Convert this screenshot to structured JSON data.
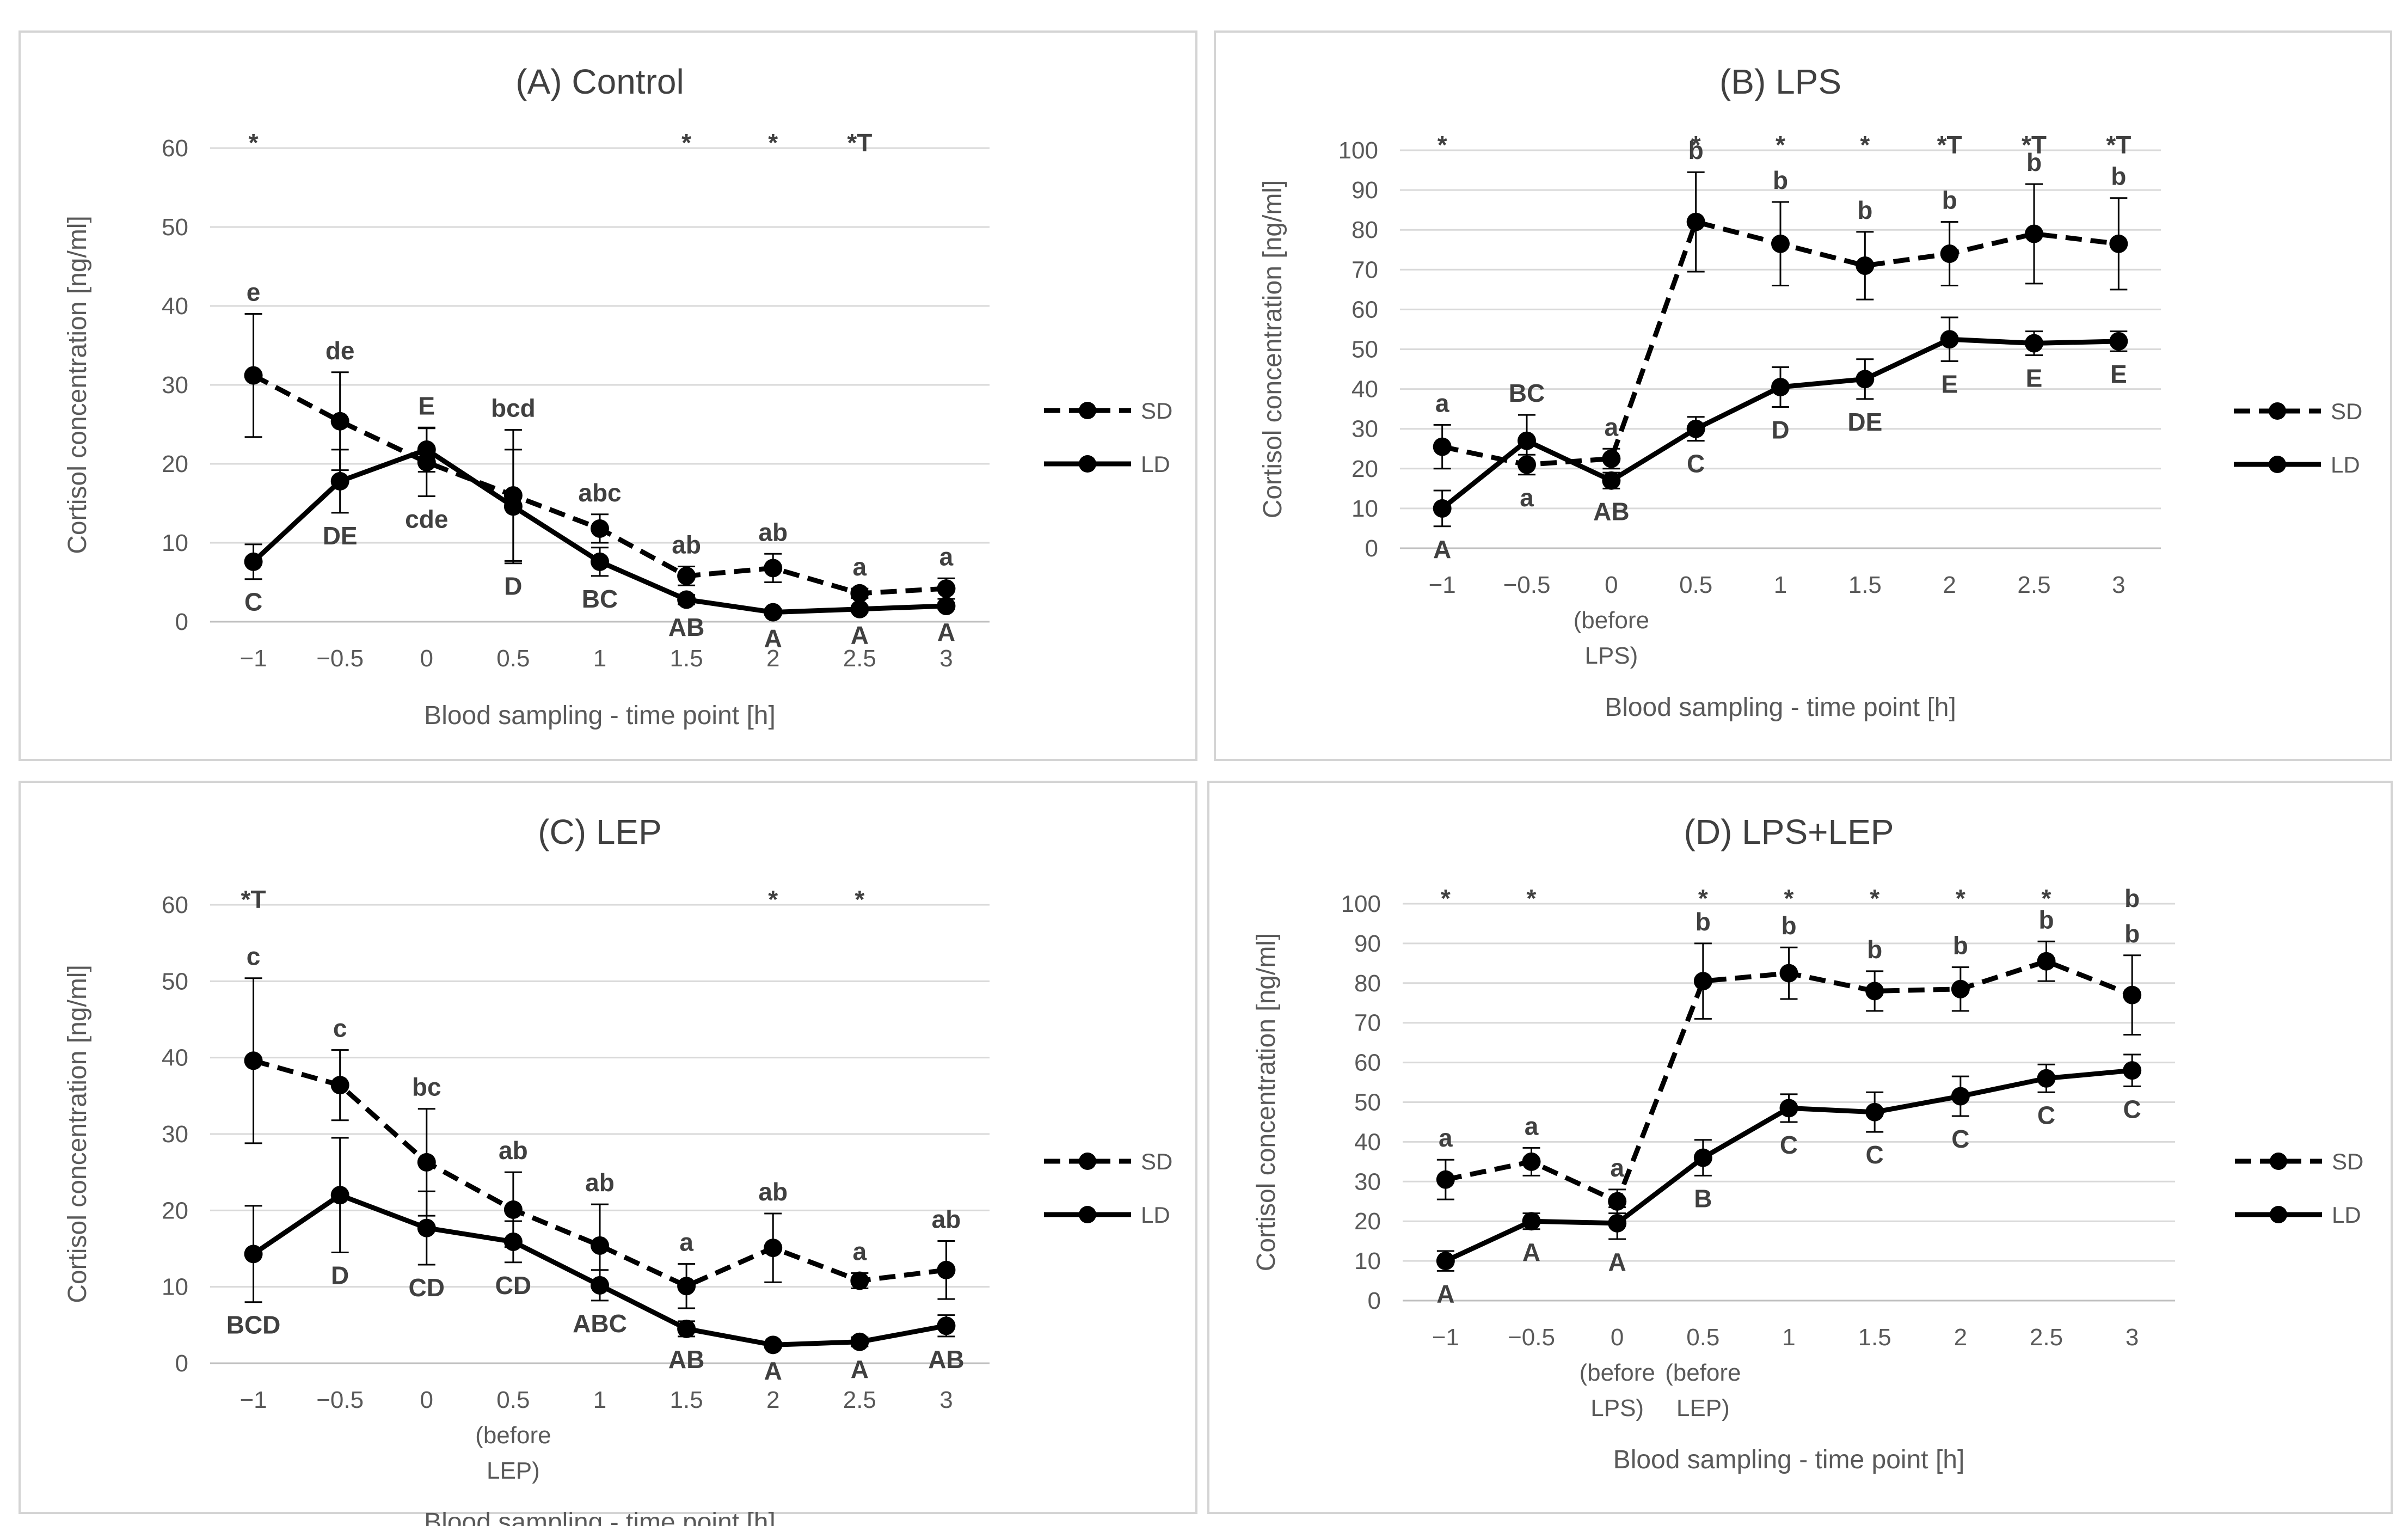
{
  "chart_data": [
    {
      "type": "line",
      "title": "(A) Control",
      "xlabel": "Blood sampling - time point [h]",
      "ylabel": "Cortisol concentration [ng/ml]",
      "ylim": [
        0,
        60
      ],
      "yticks": [
        0,
        10,
        20,
        30,
        40,
        50,
        60
      ],
      "categories": [
        "−1",
        "−0.5",
        "0",
        "0.5",
        "1",
        "1.5",
        "2",
        "2.5",
        "3"
      ],
      "category_notes": [],
      "series": [
        {
          "name": "SD",
          "style": "dashed",
          "values": [
            31.2,
            25.4,
            20.2,
            16.0,
            11.8,
            5.8,
            6.8,
            3.6,
            4.2
          ],
          "errors": [
            7.8,
            6.2,
            4.3,
            8.3,
            1.8,
            1.2,
            1.8,
            0.6,
            1.3
          ],
          "letters": [
            "e",
            "de",
            "cde",
            "bcd",
            "abc",
            "ab",
            "ab",
            "a",
            "a"
          ]
        },
        {
          "name": "LD",
          "style": "solid",
          "values": [
            7.6,
            17.8,
            21.8,
            14.6,
            7.6,
            2.8,
            1.2,
            1.6,
            2.0
          ],
          "errors": [
            2.2,
            4.0,
            2.8,
            7.2,
            1.8,
            0.6,
            0.4,
            0.4,
            0.4
          ],
          "letters": [
            "C",
            "DE",
            "E",
            "D",
            "BC",
            "AB",
            "A",
            "A",
            "A"
          ]
        }
      ],
      "significance": [
        "*",
        "",
        "",
        "",
        "",
        "*",
        "*",
        "*T",
        ""
      ],
      "legend": [
        "SD",
        "LD"
      ]
    },
    {
      "type": "line",
      "title": "(B) LPS",
      "xlabel": "Blood sampling - time point [h]",
      "ylabel": "Cortisol concentration [ng/ml]",
      "ylim": [
        0,
        100
      ],
      "yticks": [
        0,
        10,
        20,
        30,
        40,
        50,
        60,
        70,
        80,
        90,
        100
      ],
      "categories": [
        "−1",
        "−0.5",
        "0",
        "0.5",
        "1",
        "1.5",
        "2",
        "2.5",
        "3"
      ],
      "category_notes": [
        {
          "index": 2,
          "lines": [
            "(before",
            "LPS)"
          ]
        }
      ],
      "series": [
        {
          "name": "SD",
          "style": "dashed",
          "values": [
            25.5,
            21.0,
            22.5,
            82.0,
            76.5,
            71.0,
            74.0,
            79.0,
            76.5
          ],
          "errors": [
            5.5,
            2.5,
            2.5,
            12.5,
            10.5,
            8.5,
            8.0,
            12.5,
            11.5
          ],
          "letters": [
            "a",
            "a",
            "a",
            "b",
            "b",
            "b",
            "b",
            "b",
            "b"
          ]
        },
        {
          "name": "LD",
          "style": "solid",
          "values": [
            10.0,
            27.0,
            17.0,
            30.0,
            40.5,
            42.5,
            52.5,
            51.5,
            52.0
          ],
          "errors": [
            4.5,
            6.5,
            2.0,
            3.0,
            5.0,
            5.0,
            5.5,
            3.0,
            2.5
          ],
          "letters": [
            "A",
            "BC",
            "AB",
            "C",
            "D",
            "DE",
            "E",
            "E",
            "E"
          ]
        }
      ],
      "significance": [
        "*",
        "",
        "",
        "*",
        "*",
        "*",
        "*T",
        "*T",
        "*T"
      ],
      "legend": [
        "SD",
        "LD"
      ]
    },
    {
      "type": "line",
      "title": "(C) LEP",
      "xlabel": "Blood sampling - time point [h]",
      "ylabel": "Cortisol concentration [ng/ml]",
      "ylim": [
        0,
        60
      ],
      "yticks": [
        0,
        10,
        20,
        30,
        40,
        50,
        60
      ],
      "categories": [
        "−1",
        "−0.5",
        "0",
        "0.5",
        "1",
        "1.5",
        "2",
        "2.5",
        "3"
      ],
      "category_notes": [
        {
          "index": 3,
          "lines": [
            "(before",
            "LEP)"
          ]
        }
      ],
      "series": [
        {
          "name": "SD",
          "style": "dashed",
          "values": [
            39.6,
            36.4,
            26.3,
            20.1,
            15.4,
            10.1,
            15.1,
            10.8,
            12.2
          ],
          "errors": [
            10.8,
            4.6,
            7.0,
            4.9,
            5.4,
            2.9,
            4.5,
            1.0,
            3.8
          ],
          "letters": [
            "c",
            "c",
            "bc",
            "ab",
            "ab",
            "a",
            "ab",
            "a",
            "ab"
          ]
        },
        {
          "name": "LD",
          "style": "solid",
          "values": [
            14.3,
            22.0,
            17.7,
            15.9,
            10.2,
            4.5,
            2.4,
            2.8,
            4.9
          ],
          "errors": [
            6.3,
            7.5,
            4.8,
            2.7,
            2.0,
            1.0,
            0.4,
            0.6,
            1.4
          ],
          "letters": [
            "BCD",
            "D",
            "CD",
            "CD",
            "ABC",
            "AB",
            "A",
            "A",
            "AB"
          ]
        }
      ],
      "significance": [
        "*T",
        "",
        "",
        "",
        "",
        "",
        "*",
        "*",
        ""
      ],
      "legend": [
        "SD",
        "LD"
      ]
    },
    {
      "type": "line",
      "title": "(D) LPS+LEP",
      "xlabel": "Blood sampling - time point [h]",
      "ylabel": "Cortisol concentration [ng/ml]",
      "ylim": [
        0,
        100
      ],
      "yticks": [
        0,
        10,
        20,
        30,
        40,
        50,
        60,
        70,
        80,
        90,
        100
      ],
      "categories": [
        "−1",
        "−0.5",
        "0",
        "0.5",
        "1",
        "1.5",
        "2",
        "2.5",
        "3"
      ],
      "category_notes": [
        {
          "index": 2,
          "lines": [
            "(before",
            "LPS)"
          ]
        },
        {
          "index": 3,
          "lines": [
            "(before",
            "LEP)"
          ]
        }
      ],
      "series": [
        {
          "name": "SD",
          "style": "dashed",
          "values": [
            30.5,
            35.0,
            25.0,
            80.5,
            82.5,
            78.0,
            78.5,
            85.5,
            77.0
          ],
          "errors": [
            5.0,
            3.5,
            3.0,
            9.5,
            6.5,
            5.0,
            5.5,
            5.0,
            10.0
          ],
          "letters": [
            "a",
            "a",
            "a",
            "b",
            "b",
            "b",
            "b",
            "b",
            "b"
          ]
        },
        {
          "name": "LD",
          "style": "solid",
          "values": [
            10.0,
            20.0,
            19.5,
            36.0,
            48.5,
            47.5,
            51.5,
            56.0,
            58.0
          ],
          "errors": [
            2.5,
            2.0,
            4.0,
            4.5,
            3.5,
            5.0,
            5.0,
            3.5,
            4.0
          ],
          "letters": [
            "A",
            "A",
            "A",
            "B",
            "C",
            "C",
            "C",
            "C",
            "C"
          ]
        }
      ],
      "significance": [
        "*",
        "*",
        "",
        "*",
        "*",
        "*",
        "*",
        "*",
        "b"
      ],
      "legend": [
        "SD",
        "LD"
      ]
    }
  ]
}
